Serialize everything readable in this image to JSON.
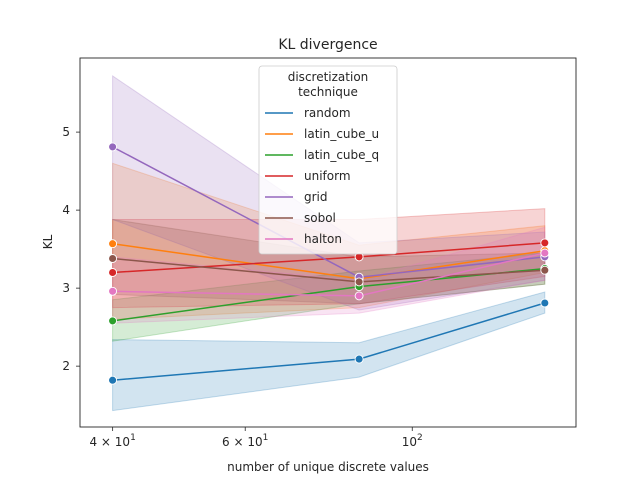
{
  "chart_data": {
    "type": "line",
    "title": "KL divergence",
    "xlabel": "number of unique discrete values",
    "ylabel": "KL",
    "x_scale": "log",
    "xlim": [
      36.2,
      165
    ],
    "ylim": [
      1.22,
      5.95
    ],
    "grid": false,
    "legend_placement": "top-center",
    "legend_title": "discretization\ntechnique",
    "x_ticks": [
      {
        "value": 40,
        "base": "4 × 10",
        "exp": "1"
      },
      {
        "value": 60,
        "base": "6 × 10",
        "exp": "1"
      },
      {
        "value": 100,
        "base": "10",
        "exp": "2"
      }
    ],
    "y_ticks": [
      2,
      3,
      4,
      5
    ],
    "x": [
      40,
      85,
      150
    ],
    "series": [
      {
        "name": "random",
        "color": "#1f77b4",
        "values": [
          1.82,
          2.09,
          2.81
        ],
        "lower": [
          1.43,
          1.86,
          2.68
        ],
        "upper": [
          2.34,
          2.3,
          2.95
        ]
      },
      {
        "name": "latin_cube_u",
        "color": "#ff7f0e",
        "values": [
          3.57,
          3.12,
          3.48
        ],
        "lower": [
          2.6,
          2.75,
          3.2
        ],
        "upper": [
          4.6,
          3.55,
          3.8
        ]
      },
      {
        "name": "latin_cube_q",
        "color": "#2ca02c",
        "values": [
          2.58,
          3.02,
          3.25
        ],
        "lower": [
          2.32,
          2.8,
          3.05
        ],
        "upper": [
          2.85,
          3.22,
          3.45
        ]
      },
      {
        "name": "uniform",
        "color": "#d62728",
        "values": [
          3.2,
          3.4,
          3.58
        ],
        "lower": [
          2.75,
          2.8,
          3.15
        ],
        "upper": [
          3.88,
          3.88,
          4.02
        ]
      },
      {
        "name": "grid",
        "color": "#9467bd",
        "values": [
          4.81,
          3.14,
          3.4
        ],
        "lower": [
          3.88,
          2.72,
          3.1
        ],
        "upper": [
          5.72,
          3.58,
          3.72
        ]
      },
      {
        "name": "sobol",
        "color": "#8c564b",
        "values": [
          3.38,
          3.08,
          3.23
        ],
        "lower": [
          2.92,
          2.8,
          3.05
        ],
        "upper": [
          3.88,
          3.4,
          3.45
        ]
      },
      {
        "name": "halton",
        "color": "#e377c2",
        "values": [
          2.96,
          2.9,
          3.45
        ],
        "lower": [
          2.55,
          2.68,
          3.1
        ],
        "upper": [
          3.4,
          3.1,
          3.78
        ]
      }
    ]
  }
}
